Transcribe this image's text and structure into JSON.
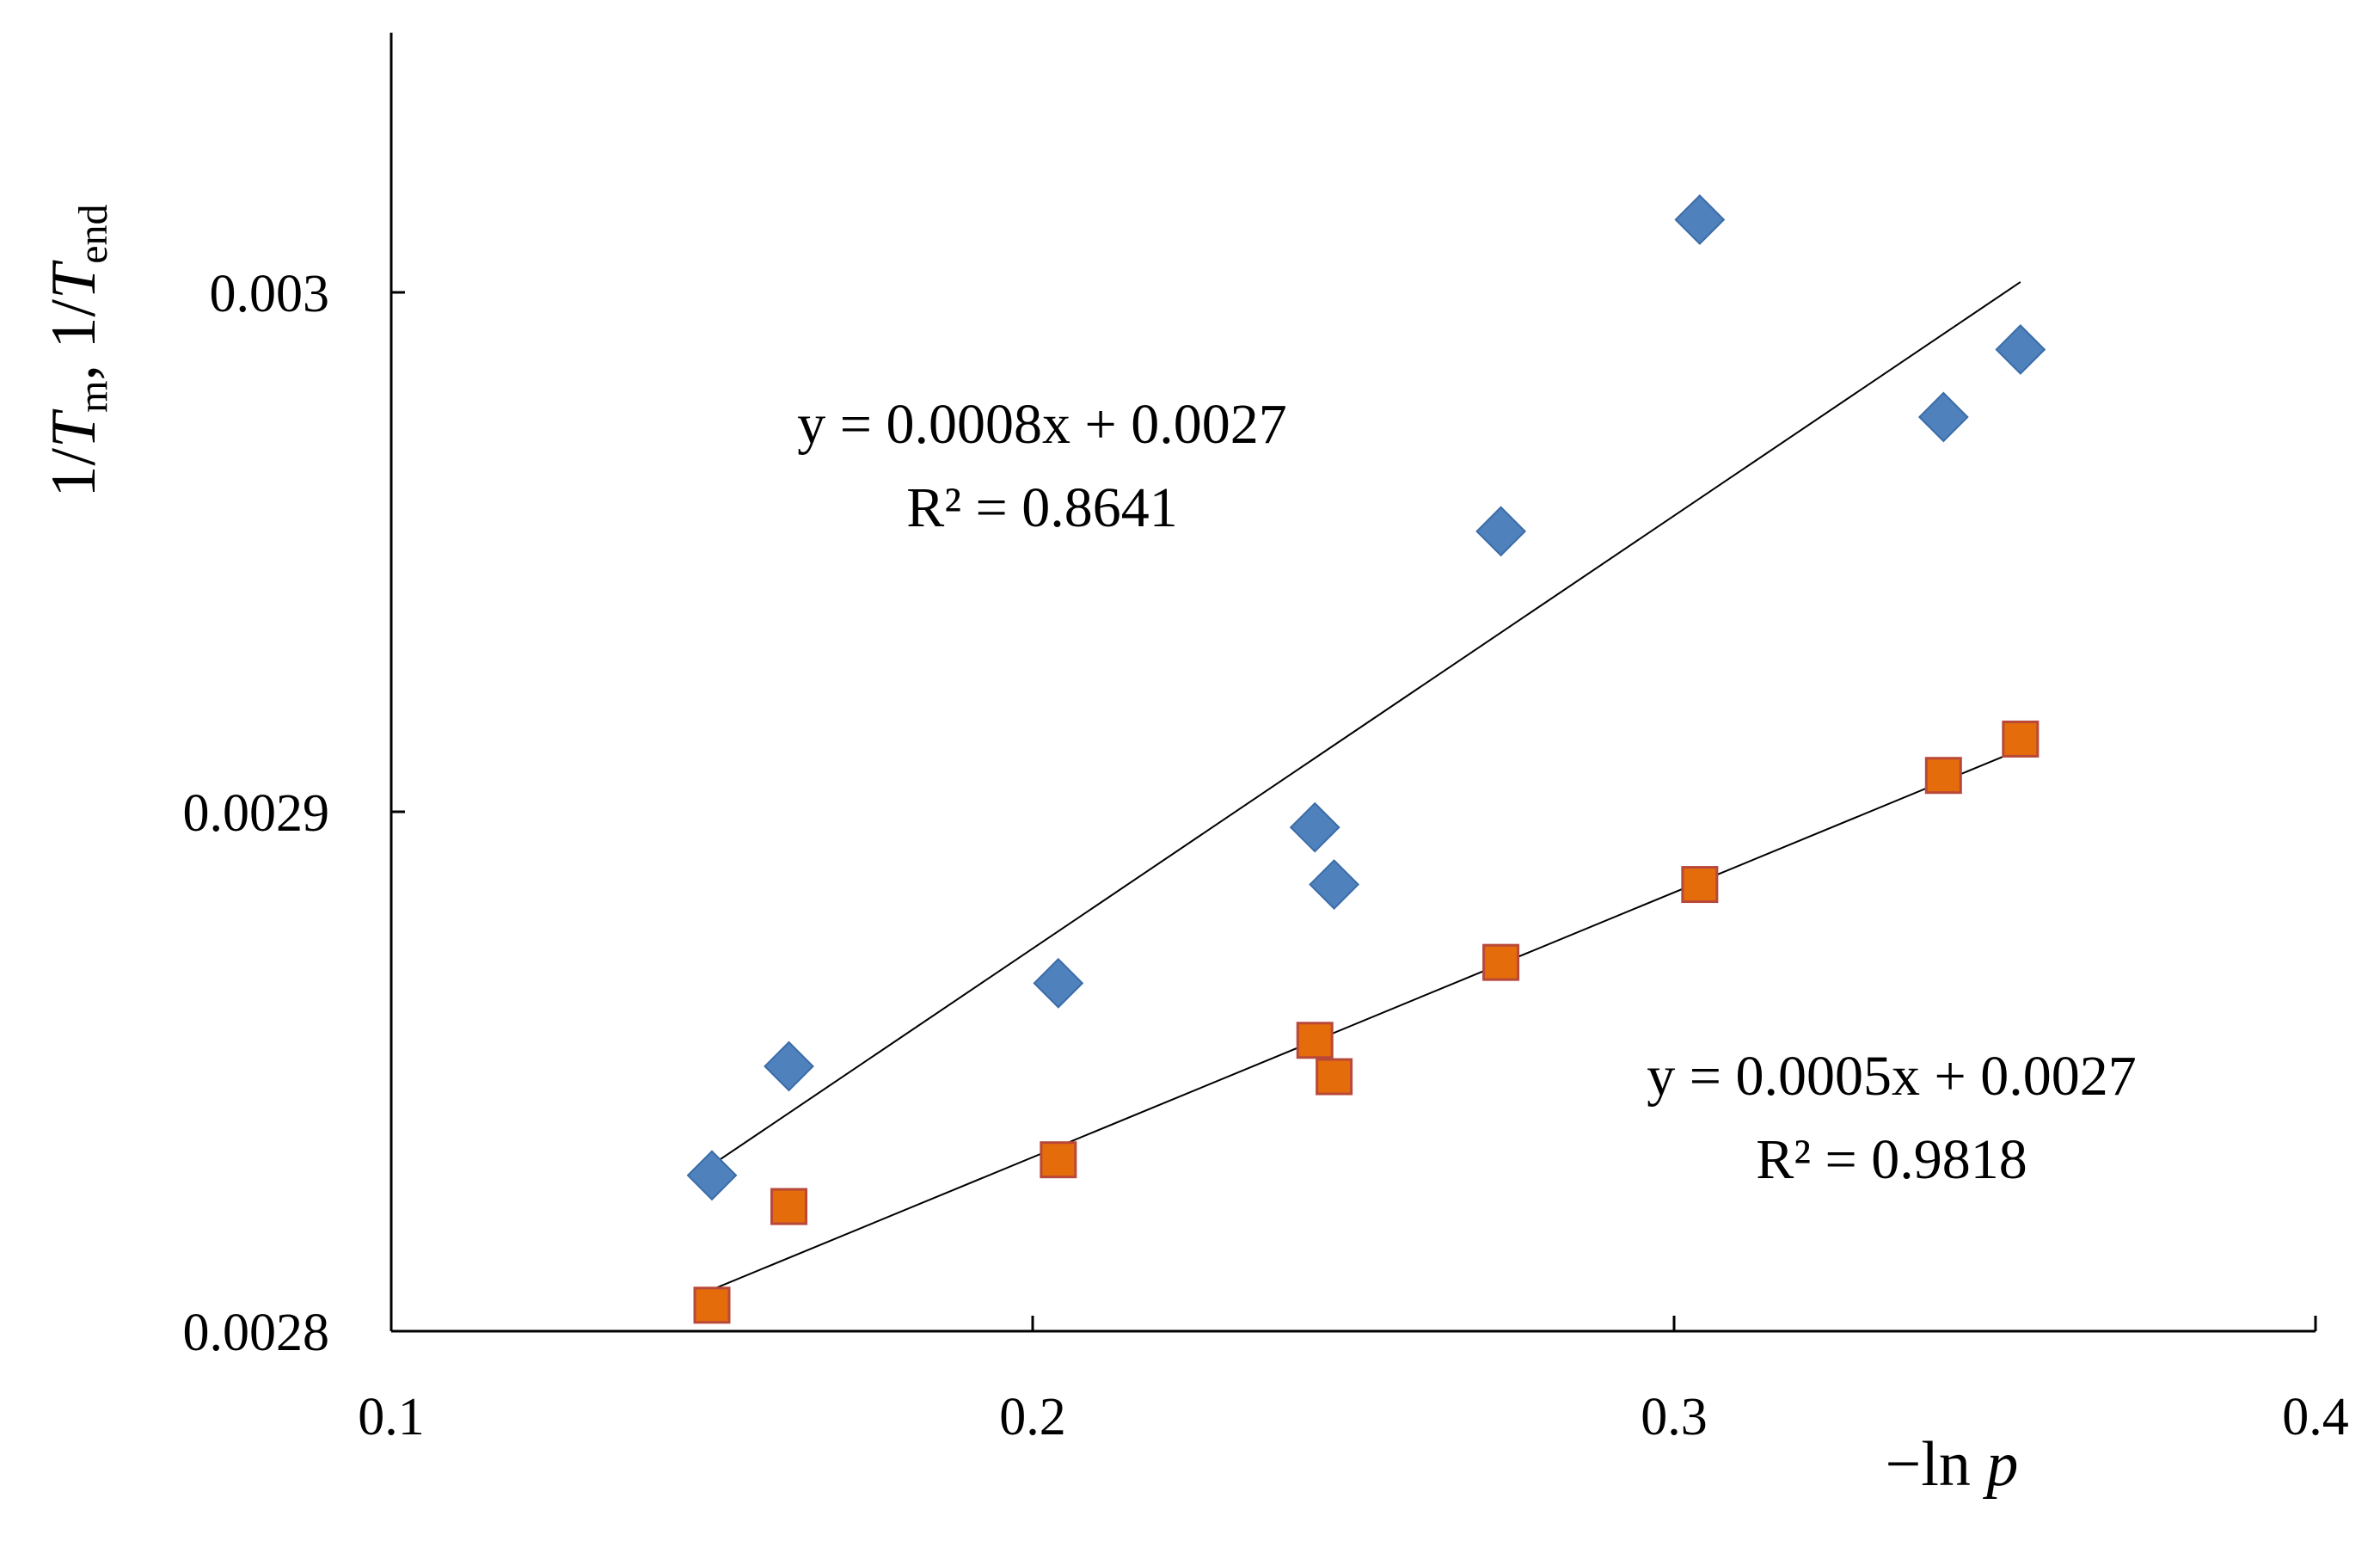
{
  "chart_data": {
    "type": "scatter",
    "title": "",
    "xlabel": "−ln p",
    "ylabel": "1/T_m, 1/T_end",
    "ylabel_parts": {
      "prefix1": "1/",
      "var1": "T",
      "sub1": "m",
      "sep": ", 1/",
      "var2": "T",
      "sub2": "end"
    },
    "xlabel_parts": {
      "prefix": "−ln ",
      "var": "p"
    },
    "xlim": [
      0.1,
      0.4
    ],
    "ylim": [
      0.0028,
      0.00305
    ],
    "x_ticks": [
      0.1,
      0.2,
      0.3,
      0.4
    ],
    "x_tick_labels": [
      "0.1",
      "0.2",
      "0.3",
      "0.4"
    ],
    "y_ticks": [
      0.0028,
      0.0029,
      0.003
    ],
    "y_tick_labels": [
      "0.0028",
      "0.0029",
      "0.003"
    ],
    "grid": false,
    "series": [
      {
        "name": "1/T_m",
        "marker": "diamond",
        "color": "#4F81BD",
        "stroke": "#3B6CA8",
        "x": [
          0.15,
          0.162,
          0.204,
          0.244,
          0.247,
          0.273,
          0.304,
          0.342,
          0.354
        ],
        "y": [
          0.00283,
          0.002851,
          0.002867,
          0.002897,
          0.002886,
          0.002954,
          0.003014,
          0.002976,
          0.002989
        ],
        "trendline": {
          "x_start": 0.15,
          "y_start": 0.002832,
          "x_end": 0.354,
          "y_end": 0.003002,
          "equation": "y = 0.0008x + 0.0027",
          "r2": "R² = 0.8641"
        }
      },
      {
        "name": "1/T_end",
        "marker": "square",
        "color": "#E46C0A",
        "stroke": "#B8493A",
        "x": [
          0.15,
          0.162,
          0.204,
          0.244,
          0.247,
          0.273,
          0.304,
          0.342,
          0.354
        ],
        "y": [
          0.002805,
          0.002824,
          0.002833,
          0.002856,
          0.002849,
          0.002871,
          0.002886,
          0.002907,
          0.002914
        ],
        "trendline": {
          "x_start": 0.15,
          "y_start": 0.002808,
          "x_end": 0.354,
          "y_end": 0.002912,
          "equation": "y = 0.0005x + 0.0027",
          "r2": "R² = 0.9818"
        }
      }
    ]
  }
}
